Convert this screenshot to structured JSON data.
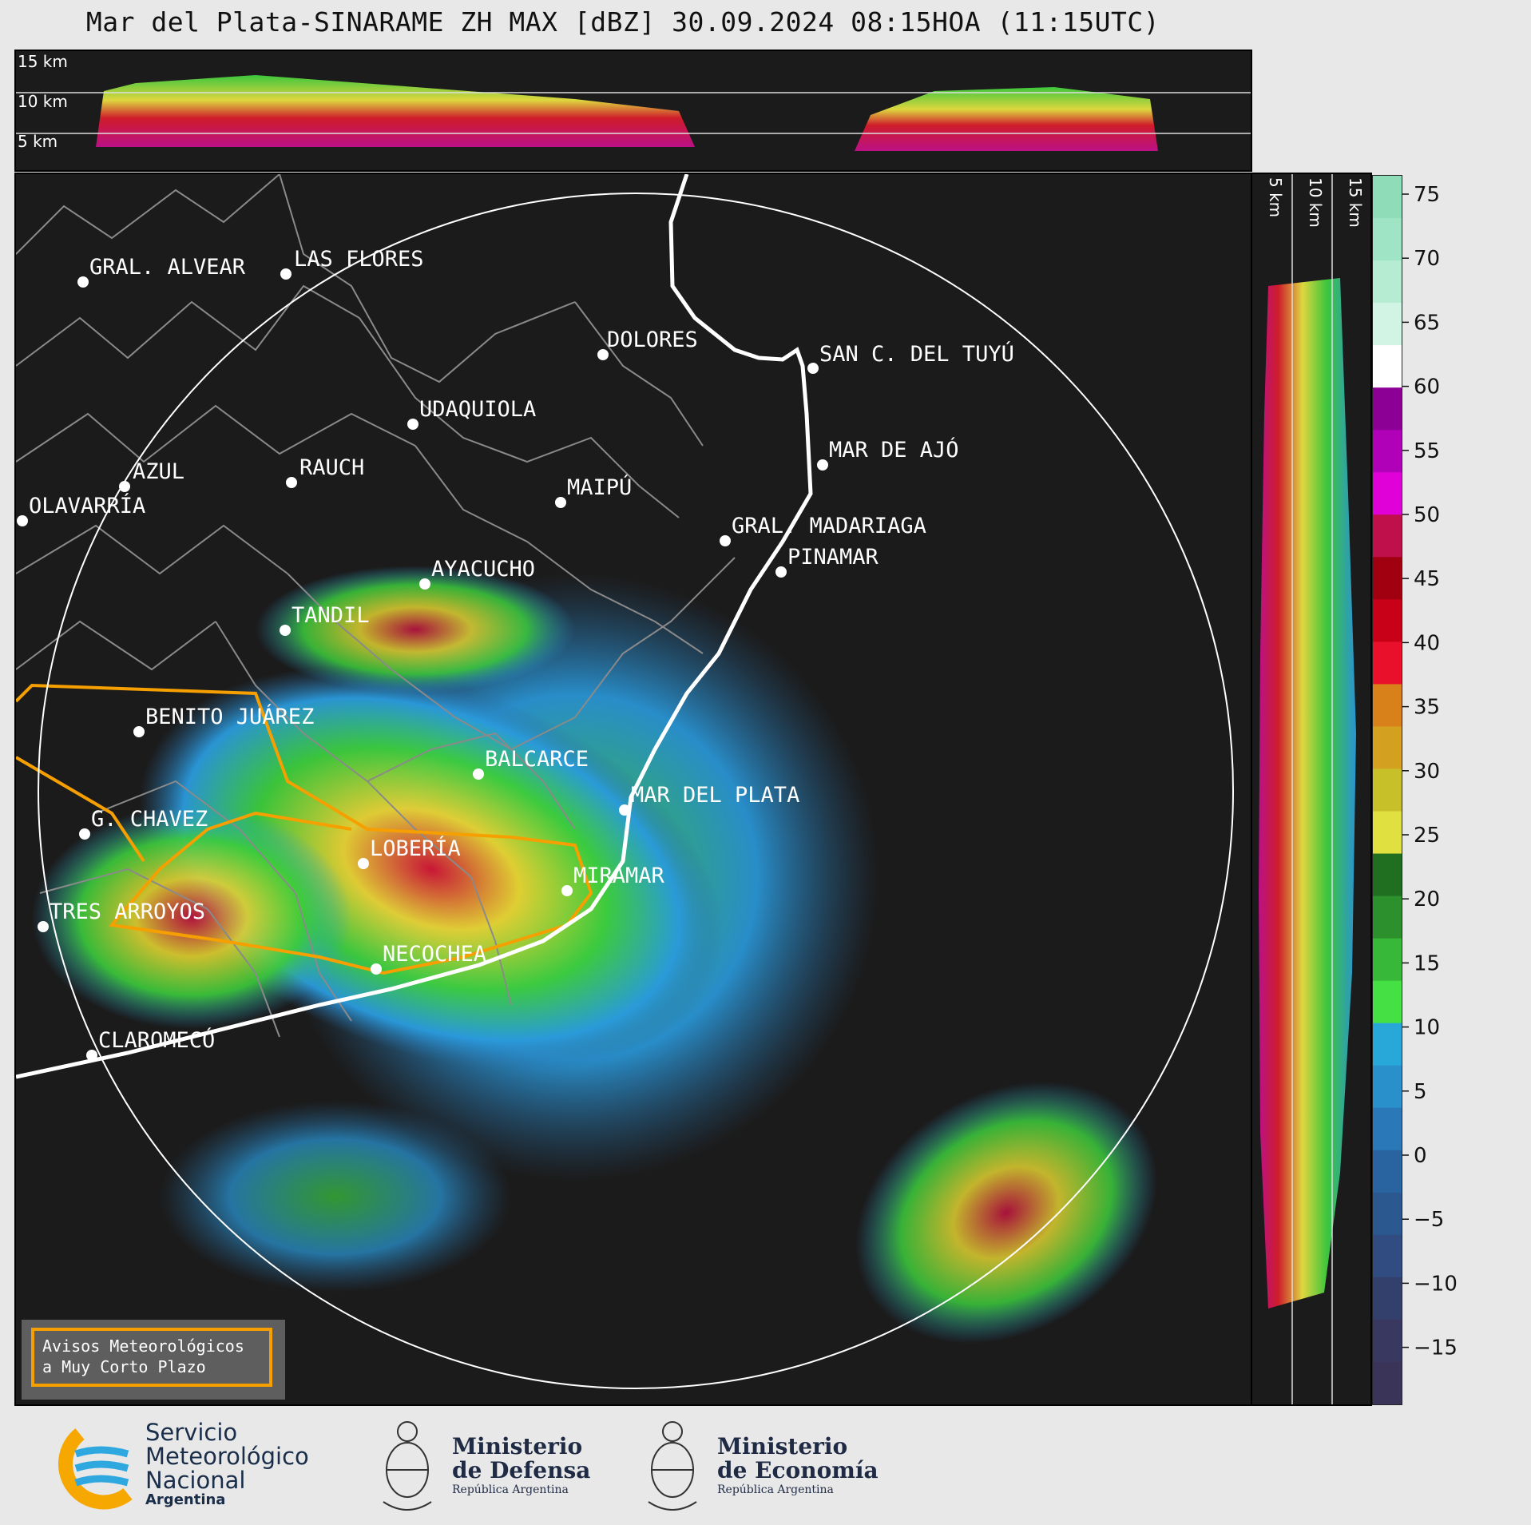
{
  "title": "Mar del Plata-SINARAME ZH MAX [dBZ] 30.09.2024 08:15HOA (11:15UTC)",
  "top_panel": {
    "heights": [
      "15 km",
      "10 km",
      "5 km"
    ]
  },
  "side_panel": {
    "heights": [
      "5 km",
      "10 km",
      "15 km"
    ]
  },
  "colorbar": {
    "ticks": [
      "75",
      "70",
      "65",
      "60",
      "55",
      "50",
      "45",
      "40",
      "35",
      "30",
      "25",
      "20",
      "15",
      "10",
      "5",
      "0",
      "−5",
      "−10",
      "−15"
    ]
  },
  "cities": [
    {
      "name": "GRAL. ALVEAR"
    },
    {
      "name": "LAS FLORES"
    },
    {
      "name": "DOLORES"
    },
    {
      "name": "SAN C. DEL TUYÚ"
    },
    {
      "name": "UDAQUIOLA"
    },
    {
      "name": "AZUL"
    },
    {
      "name": "RAUCH"
    },
    {
      "name": "OLAVARRÍA"
    },
    {
      "name": "MAIPÚ"
    },
    {
      "name": "MAR DE AJÓ"
    },
    {
      "name": "GRAL. MADARIAGA"
    },
    {
      "name": "PINAMAR"
    },
    {
      "name": "AYACUCHO"
    },
    {
      "name": "TANDIL"
    },
    {
      "name": "BENITO JUÁREZ"
    },
    {
      "name": "BALCARCE"
    },
    {
      "name": "MAR DEL PLATA"
    },
    {
      "name": "G. CHAVEZ"
    },
    {
      "name": "LOBERÍA"
    },
    {
      "name": "MIRAMAR"
    },
    {
      "name": "TRES ARROYOS"
    },
    {
      "name": "NECOCHEA"
    },
    {
      "name": "CLAROMECÓ"
    }
  ],
  "aviso": {
    "line1": "Avisos Meteorológicos",
    "line2": "a Muy Corto Plazo"
  },
  "footer": {
    "smn": {
      "line1": "Servicio",
      "line2": "Meteorológico",
      "line3": "Nacional",
      "line4": "Argentina"
    },
    "defensa": {
      "line1": "Ministerio",
      "line2": "de Defensa",
      "line3": "República Argentina"
    },
    "economia": {
      "line1": "Ministerio",
      "line2": "de Economía",
      "line3": "República Argentina"
    }
  },
  "colors": {
    "background": "#1b1b1b",
    "coast": "#ffffff",
    "warning": "#f5a000",
    "borders": "#8a8a8a"
  }
}
